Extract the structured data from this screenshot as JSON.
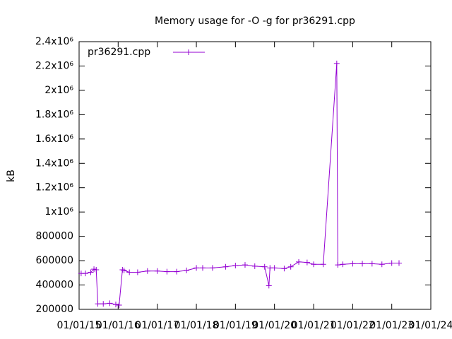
{
  "chart_data": {
    "type": "line",
    "title": "Memory usage for -O -g for pr36291.cpp",
    "ylabel": "kB",
    "legend": "top-left",
    "series": [
      {
        "name": "pr36291.cpp",
        "color": "#9400d3",
        "x": [
          "2015-01-20",
          "2015-03-01",
          "2015-04-20",
          "2015-05-20",
          "2015-06-10",
          "2015-06-25",
          "2015-08-15",
          "2015-10-15",
          "2015-12-10",
          "2016-01-10",
          "2016-02-10",
          "2016-02-25",
          "2016-04-15",
          "2016-07-01",
          "2016-10-01",
          "2017-01-01",
          "2017-04-01",
          "2017-07-01",
          "2017-10-01",
          "2018-01-01",
          "2018-03-01",
          "2018-06-01",
          "2018-10-01",
          "2019-01-01",
          "2019-04-01",
          "2019-07-01",
          "2019-10-01",
          "2019-11-10",
          "2019-11-20",
          "2020-01-01",
          "2020-04-01",
          "2020-06-01",
          "2020-08-15",
          "2020-11-01",
          "2021-01-01",
          "2021-04-01",
          "2021-08-05",
          "2021-08-15",
          "2021-10-01",
          "2022-01-01",
          "2022-04-01",
          "2022-07-01",
          "2022-10-01",
          "2023-01-01",
          "2023-03-10"
        ],
        "values": [
          495000,
          495000,
          505000,
          530000,
          525000,
          245000,
          245000,
          250000,
          240000,
          235000,
          525000,
          520000,
          505000,
          505000,
          515000,
          515000,
          510000,
          510000,
          520000,
          540000,
          540000,
          540000,
          550000,
          560000,
          565000,
          555000,
          550000,
          395000,
          540000,
          540000,
          535000,
          550000,
          590000,
          585000,
          570000,
          570000,
          2221000,
          565000,
          570000,
          575000,
          575000,
          575000,
          570000,
          580000,
          580000
        ]
      }
    ],
    "xlim": [
      "2015-01-01",
      "2024-01-01"
    ],
    "xticks": [
      {
        "value": "2015-01-01",
        "label": "01/01/15"
      },
      {
        "value": "2016-01-01",
        "label": "01/01/16"
      },
      {
        "value": "2017-01-01",
        "label": "01/01/17"
      },
      {
        "value": "2018-01-01",
        "label": "01/01/18"
      },
      {
        "value": "2019-01-01",
        "label": "01/01/19"
      },
      {
        "value": "2020-01-01",
        "label": "01/01/20"
      },
      {
        "value": "2021-01-01",
        "label": "01/01/21"
      },
      {
        "value": "2022-01-01",
        "label": "01/01/22"
      },
      {
        "value": "2023-01-01",
        "label": "01/01/23"
      },
      {
        "value": "2024-01-01",
        "label": "01/01/24"
      }
    ],
    "ylim": [
      200000,
      2400000
    ],
    "yticks": [
      200000,
      400000,
      600000,
      800000,
      {
        "value": 1000000,
        "label": "1x10⁶"
      },
      {
        "value": 1200000,
        "label": "1.2x10⁶"
      },
      {
        "value": 1400000,
        "label": "1.4x10⁶"
      },
      {
        "value": 1600000,
        "label": "1.6x10⁶"
      },
      {
        "value": 1800000,
        "label": "1.8x10⁶"
      },
      {
        "value": 2000000,
        "label": "2x10⁶"
      },
      {
        "value": 2200000,
        "label": "2.2x10⁶"
      },
      {
        "value": 2400000,
        "label": "2.4x10⁶"
      }
    ]
  }
}
